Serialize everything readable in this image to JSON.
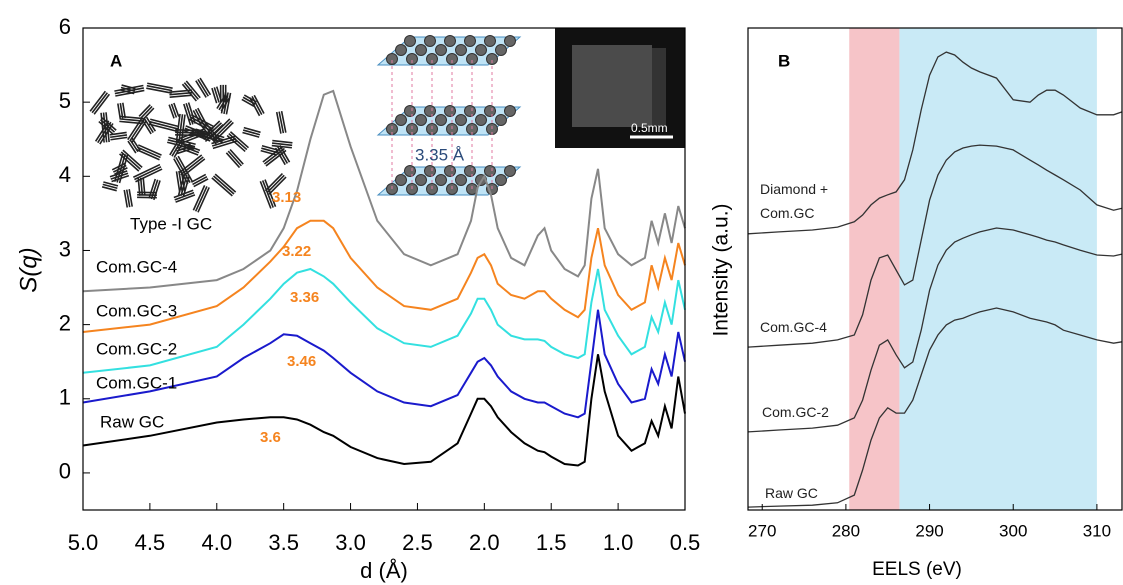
{
  "chart_data": [
    {
      "type": "line",
      "panel_label": "A",
      "xlabel": "d (Å)",
      "ylabel": "S(q)",
      "xlim": [
        5.0,
        0.5
      ],
      "ylim": [
        -0.5,
        6
      ],
      "xticks": [
        {
          "value": 5,
          "label": "5.0"
        },
        4.5,
        {
          "value": 4,
          "label": "4.0"
        },
        3.5,
        {
          "value": 3,
          "label": "3.0"
        },
        2.5,
        {
          "value": 2,
          "label": "2.0"
        },
        1.5,
        {
          "value": 1,
          "label": "1.0"
        },
        0.5
      ],
      "yticks": [
        0,
        1,
        2,
        3,
        4,
        5,
        6
      ],
      "x": [
        5.0,
        4.5,
        4.0,
        3.8,
        3.6,
        3.5,
        3.4,
        3.3,
        3.2,
        3.13,
        3.0,
        2.8,
        2.6,
        2.4,
        2.2,
        2.1,
        2.05,
        2.0,
        1.95,
        1.9,
        1.8,
        1.7,
        1.6,
        1.55,
        1.5,
        1.4,
        1.3,
        1.25,
        1.2,
        1.15,
        1.1,
        1.0,
        0.9,
        0.8,
        0.75,
        0.7,
        0.65,
        0.6,
        0.55,
        0.5
      ],
      "series": [
        {
          "name": "Raw GC",
          "color": "#000000",
          "values": [
            0.37,
            0.5,
            0.68,
            0.72,
            0.75,
            0.75,
            0.72,
            0.65,
            0.55,
            0.5,
            0.35,
            0.2,
            0.12,
            0.15,
            0.4,
            0.8,
            1.0,
            1.0,
            0.9,
            0.75,
            0.55,
            0.4,
            0.3,
            0.28,
            0.22,
            0.12,
            0.1,
            0.15,
            1.0,
            1.6,
            1.1,
            0.5,
            0.3,
            0.4,
            0.7,
            0.5,
            0.9,
            0.6,
            1.3,
            0.8
          ]
        },
        {
          "name": "Com.GC-1",
          "color": "#1a1acc",
          "values": [
            0.95,
            1.1,
            1.3,
            1.55,
            1.75,
            1.87,
            1.85,
            1.75,
            1.65,
            1.55,
            1.35,
            1.1,
            0.95,
            0.9,
            1.05,
            1.35,
            1.5,
            1.55,
            1.45,
            1.3,
            1.1,
            1.0,
            0.95,
            0.95,
            0.9,
            0.8,
            0.75,
            0.8,
            1.5,
            2.2,
            1.6,
            1.2,
            0.95,
            1.0,
            1.4,
            1.2,
            1.6,
            1.3,
            1.9,
            1.5
          ]
        },
        {
          "name": "Com.GC-2",
          "color": "#33e0e0",
          "values": [
            1.35,
            1.45,
            1.7,
            2.0,
            2.35,
            2.55,
            2.7,
            2.75,
            2.65,
            2.55,
            2.3,
            1.95,
            1.75,
            1.7,
            1.85,
            2.15,
            2.35,
            2.35,
            2.2,
            2.0,
            1.85,
            1.8,
            1.8,
            1.78,
            1.7,
            1.6,
            1.55,
            1.6,
            2.3,
            2.75,
            2.2,
            1.85,
            1.6,
            1.7,
            2.1,
            1.9,
            2.3,
            2.0,
            2.6,
            2.2
          ]
        },
        {
          "name": "Com.GC-3",
          "color": "#f5841f",
          "values": [
            1.9,
            2.0,
            2.25,
            2.5,
            2.85,
            3.05,
            3.3,
            3.4,
            3.4,
            3.3,
            2.9,
            2.5,
            2.25,
            2.2,
            2.35,
            2.7,
            2.9,
            2.95,
            2.8,
            2.55,
            2.4,
            2.35,
            2.45,
            2.45,
            2.35,
            2.2,
            2.1,
            2.2,
            2.9,
            3.3,
            2.8,
            2.4,
            2.2,
            2.3,
            2.8,
            2.5,
            2.9,
            2.6,
            3.1,
            2.8
          ]
        },
        {
          "name": "Com.GC-4",
          "color": "#888888",
          "values": [
            2.45,
            2.5,
            2.6,
            2.75,
            3.0,
            3.3,
            3.8,
            4.5,
            5.1,
            5.15,
            4.4,
            3.4,
            2.95,
            2.8,
            2.95,
            3.4,
            3.85,
            4.0,
            3.75,
            3.3,
            2.9,
            2.8,
            3.2,
            3.3,
            3.0,
            2.75,
            2.65,
            2.8,
            3.7,
            4.1,
            3.3,
            2.95,
            2.8,
            2.9,
            3.4,
            3.1,
            3.5,
            3.1,
            3.6,
            3.3
          ]
        }
      ],
      "peak_labels": [
        "3.6",
        "3.46",
        "3.36",
        "3.22",
        "3.13"
      ],
      "peak_color": "#f5841f",
      "annotations": [
        "Type -I GC",
        "3.35 Å",
        "0.5mm"
      ]
    },
    {
      "type": "line",
      "panel_label": "B",
      "xlabel": "EELS (eV)",
      "ylabel": "Intensity (a.u.)",
      "xlim": [
        268.3,
        313
      ],
      "ylim": [
        0,
        10
      ],
      "xticks": [
        270,
        280,
        290,
        300,
        310
      ],
      "regions": [
        {
          "xmin": 280.4,
          "xmax": 286.4,
          "color": "#f6c4c8"
        },
        {
          "xmin": 286.4,
          "xmax": 310,
          "color": "#c9eaf6"
        }
      ],
      "x": [
        268.3,
        272,
        276,
        279,
        281,
        282,
        283,
        284,
        285,
        286,
        287,
        288,
        289,
        290,
        291,
        292,
        293,
        294,
        295,
        296,
        298,
        300,
        302,
        303,
        304,
        305,
        306,
        308,
        310,
        312,
        313
      ],
      "series": [
        {
          "name": "Raw GC",
          "color": "#333333",
          "values": [
            0.06,
            0.08,
            0.1,
            0.15,
            0.31,
            0.83,
            1.45,
            1.91,
            2.12,
            2.01,
            2.01,
            2.28,
            2.8,
            3.32,
            3.63,
            3.84,
            3.94,
            3.98,
            4.05,
            4.11,
            4.19,
            4.11,
            3.98,
            3.94,
            3.9,
            3.84,
            3.73,
            3.63,
            3.53,
            3.46,
            3.49
          ]
        },
        {
          "name": "Com.GC-2",
          "color": "#333333",
          "values": [
            1.62,
            1.66,
            1.7,
            1.76,
            1.91,
            2.28,
            2.9,
            3.42,
            3.53,
            3.22,
            2.95,
            3.07,
            3.73,
            4.56,
            5.08,
            5.39,
            5.56,
            5.64,
            5.71,
            5.77,
            5.85,
            5.81,
            5.71,
            5.66,
            5.6,
            5.56,
            5.5,
            5.39,
            5.29,
            5.27,
            5.31
          ]
        },
        {
          "name": "Com.GC-4",
          "color": "#333333",
          "values": [
            3.38,
            3.42,
            3.46,
            3.53,
            3.63,
            4.05,
            4.77,
            5.23,
            5.29,
            4.98,
            4.67,
            4.77,
            5.6,
            6.43,
            6.95,
            7.26,
            7.43,
            7.51,
            7.55,
            7.57,
            7.55,
            7.47,
            7.26,
            7.16,
            7.05,
            6.95,
            6.85,
            6.64,
            6.33,
            6.22,
            6.26
          ]
        },
        {
          "name": "Diamond + Com.GC",
          "color": "#333333",
          "values": [
            5.73,
            5.77,
            5.81,
            5.87,
            5.98,
            6.12,
            6.33,
            6.47,
            6.54,
            6.6,
            6.85,
            7.47,
            8.3,
            9.02,
            9.4,
            9.5,
            9.44,
            9.29,
            9.17,
            9.09,
            8.96,
            8.51,
            8.46,
            8.61,
            8.71,
            8.71,
            8.61,
            8.34,
            8.2,
            8.2,
            8.26
          ]
        }
      ]
    }
  ]
}
